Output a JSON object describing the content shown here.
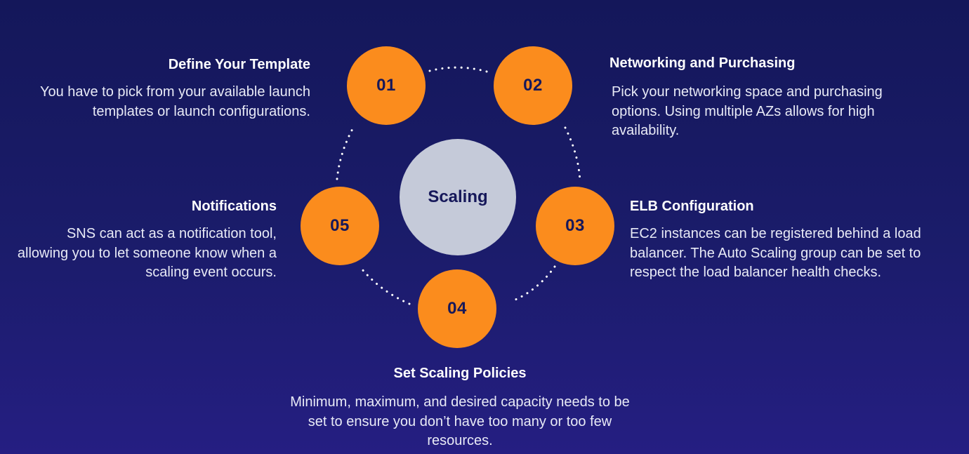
{
  "center": {
    "label": "Scaling"
  },
  "steps": [
    {
      "number": "01",
      "title": "Define Your Template",
      "body": "You have to pick from your available launch templates or launch configurations."
    },
    {
      "number": "02",
      "title": "Networking and Purchasing",
      "body": "Pick your networking space and purchasing options. Using multiple AZs allows for high availability."
    },
    {
      "number": "03",
      "title": "ELB Configuration",
      "body": "EC2 instances can be registered behind a load balancer. The Auto Scaling group can be set to respect the load balancer health checks."
    },
    {
      "number": "04",
      "title": "Set Scaling Policies",
      "body": "Minimum, maximum, and desired capacity needs to be set to ensure you don’t have too many or too few resources."
    },
    {
      "number": "05",
      "title": "Notifications",
      "body": "SNS can act as a notification tool, allowing you to let someone know when a scaling event occurs."
    }
  ],
  "colors": {
    "node": "#fb8c1d",
    "center": "#c5cad9",
    "text_dark": "#16185a",
    "background": "#1b1c6b"
  }
}
